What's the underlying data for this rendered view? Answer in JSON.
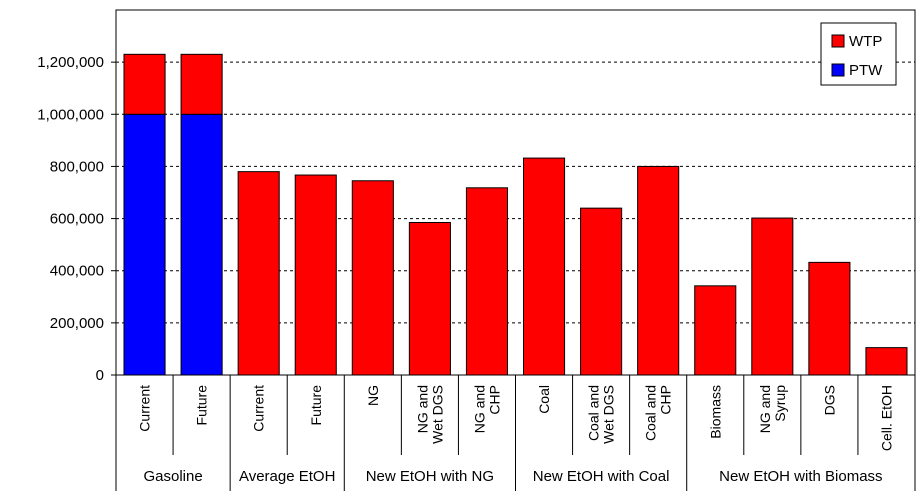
{
  "chart_data": {
    "type": "bar",
    "stacked": true,
    "title": "",
    "xlabel": "",
    "ylabel": "",
    "ylim": [
      0,
      1400000
    ],
    "yticks": [
      0,
      200000,
      400000,
      600000,
      800000,
      1000000,
      1200000
    ],
    "ytick_labels": [
      "0",
      "200,000",
      "400,000",
      "600,000",
      "800,000",
      "1,000,000",
      "1,200,000"
    ],
    "grid": "horizontal dashed",
    "legend_position": "top-right",
    "categories": [
      [
        "Current"
      ],
      [
        "Future"
      ],
      [
        "Current"
      ],
      [
        "Future"
      ],
      [
        "NG"
      ],
      [
        "NG and",
        "Wet DGS"
      ],
      [
        "NG and",
        "CHP"
      ],
      [
        "Coal"
      ],
      [
        "Coal and",
        "Wet DGS"
      ],
      [
        "Coal and",
        "CHP"
      ],
      [
        "Biomass"
      ],
      [
        "NG and",
        "Syrup"
      ],
      [
        "DGS"
      ],
      [
        "Cell. EtOH"
      ]
    ],
    "groups": [
      {
        "label": "Gasoline",
        "count": 2
      },
      {
        "label": "Average EtOH",
        "count": 2
      },
      {
        "label": "New EtOH with NG",
        "count": 3
      },
      {
        "label": "New EtOH with Coal",
        "count": 3
      },
      {
        "label": "New EtOH with Biomass",
        "count": 4
      }
    ],
    "series": [
      {
        "name": "PTW",
        "color": "#0000ff",
        "values": [
          1000000,
          1000000,
          0,
          0,
          0,
          0,
          0,
          0,
          0,
          0,
          0,
          0,
          0,
          0
        ]
      },
      {
        "name": "WTP",
        "color": "#ff0000",
        "values": [
          230000,
          230000,
          780000,
          767000,
          745000,
          585000,
          718000,
          832000,
          640000,
          800000,
          342000,
          602000,
          432000,
          105000
        ]
      }
    ],
    "legend": [
      {
        "name": "WTP",
        "color": "#ff0000"
      },
      {
        "name": "PTW",
        "color": "#0000ff"
      }
    ]
  }
}
